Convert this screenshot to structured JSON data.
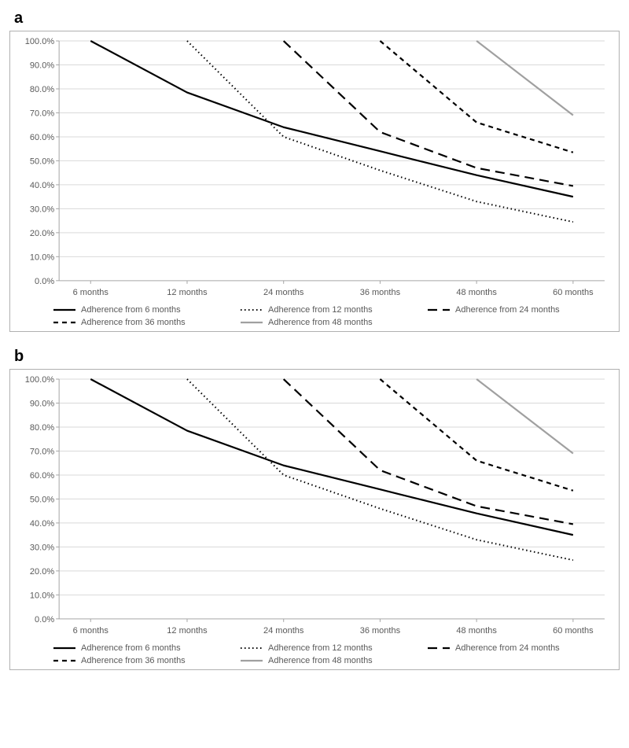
{
  "background_color": "#ffffff",
  "panels": {
    "a": {
      "label": "a"
    },
    "b": {
      "label": "b"
    }
  },
  "chart": {
    "type": "line",
    "plot_background": "#ffffff",
    "border_color": "#b0b0b0",
    "axis_line_color": "#a6a6a6",
    "gridline_color": "#d9d9d9",
    "tick_label_color": "#595959",
    "tick_fontsize": 11,
    "x_categories": [
      "6 months",
      "12 months",
      "24 months",
      "36 months",
      "48 months",
      "60 months"
    ],
    "y_min": 0,
    "y_max": 100,
    "y_tick_step": 10,
    "y_tick_labels": [
      "0.0%",
      "10.0%",
      "20.0%",
      "30.0%",
      "40.0%",
      "50.0%",
      "60.0%",
      "70.0%",
      "80.0%",
      "90.0%",
      "100.0%"
    ],
    "series": [
      {
        "key": "from6",
        "label": "Adherence from 6 months",
        "color": "#000000",
        "line_width": 2.2,
        "dash": "solid",
        "data": [
          [
            0,
            100.0
          ],
          [
            1,
            78.5
          ],
          [
            2,
            64.0
          ],
          [
            3,
            54.0
          ],
          [
            4,
            44.0
          ],
          [
            5,
            35.0
          ]
        ]
      },
      {
        "key": "from12",
        "label": "Adherence from 12 months",
        "color": "#000000",
        "line_width": 2.0,
        "dash": "dotted-fine",
        "data": [
          [
            1,
            100.0
          ],
          [
            2,
            60.0
          ],
          [
            3,
            46.0
          ],
          [
            4,
            33.0
          ],
          [
            5,
            24.5
          ]
        ]
      },
      {
        "key": "from24",
        "label": "Adherence from 24 months",
        "color": "#000000",
        "line_width": 2.2,
        "dash": "long-dash",
        "data": [
          [
            2,
            100.0
          ],
          [
            3,
            62.0
          ],
          [
            4,
            47.0
          ],
          [
            5,
            39.5
          ]
        ]
      },
      {
        "key": "from36",
        "label": "Adherence from 36 months",
        "color": "#000000",
        "line_width": 2.2,
        "dash": "short-dash",
        "data": [
          [
            3,
            100.0
          ],
          [
            4,
            66.0
          ],
          [
            5,
            53.5
          ]
        ]
      },
      {
        "key": "from48",
        "label": "Adherence from 48 months",
        "color": "#a0a0a0",
        "line_width": 2.2,
        "dash": "solid",
        "data": [
          [
            4,
            100.0
          ],
          [
            5,
            69.0
          ]
        ]
      }
    ],
    "legend": {
      "fontsize": 11,
      "text_color": "#595959",
      "layout": "grid-3x2"
    }
  }
}
